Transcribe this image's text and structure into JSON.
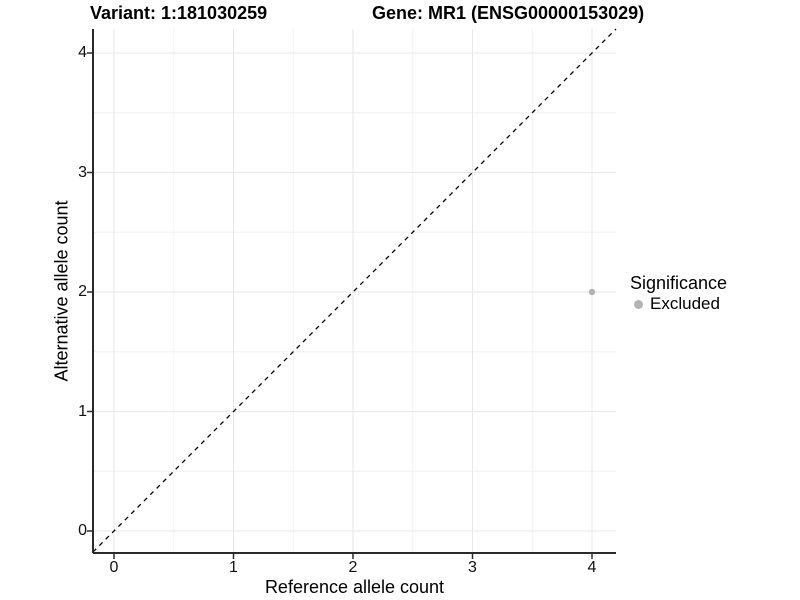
{
  "header": {
    "variant_title": "Variant: 1:181030259",
    "gene_title": "Gene: MR1 (ENSG00000153029)"
  },
  "chart_data": {
    "type": "scatter",
    "titles": {
      "left": "Variant: 1:181030259",
      "right": "Gene: MR1 (ENSG00000153029)"
    },
    "xlabel": "Reference allele count",
    "ylabel": "Alternative allele count",
    "xlim": [
      -0.2,
      4.2
    ],
    "ylim": [
      -0.2,
      4.2
    ],
    "x_ticks": [
      0,
      1,
      2,
      3,
      4
    ],
    "y_ticks": [
      0,
      1,
      2,
      3,
      4
    ],
    "x_minor_ticks": [
      0.5,
      1.5,
      2.5,
      3.5
    ],
    "y_minor_ticks": [
      0.5,
      1.5,
      2.5,
      3.5
    ],
    "grid": true,
    "series": [
      {
        "name": "Excluded",
        "marker": "circle",
        "color": "#b3b3b3",
        "points": [
          {
            "x": 4,
            "y": 2
          }
        ]
      }
    ],
    "reference_line": {
      "equation": "y = x",
      "style": "dashed",
      "from": [
        -0.2,
        -0.2
      ],
      "to": [
        4.2,
        4.2
      ]
    },
    "legend": {
      "title": "Significance",
      "position": "right",
      "entries": [
        {
          "label": "Excluded",
          "color": "#b3b3b3",
          "marker": "circle"
        }
      ]
    }
  },
  "colors": {
    "background": "#ffffff",
    "text": "#000000",
    "axis_line": "#2a2a2a",
    "tick_mark": "#2a2a2a",
    "grid_major": "#e7e7e7",
    "grid_minor": "#f2f2f2",
    "reference_line": "#000000",
    "point": "#b3b3b3"
  }
}
